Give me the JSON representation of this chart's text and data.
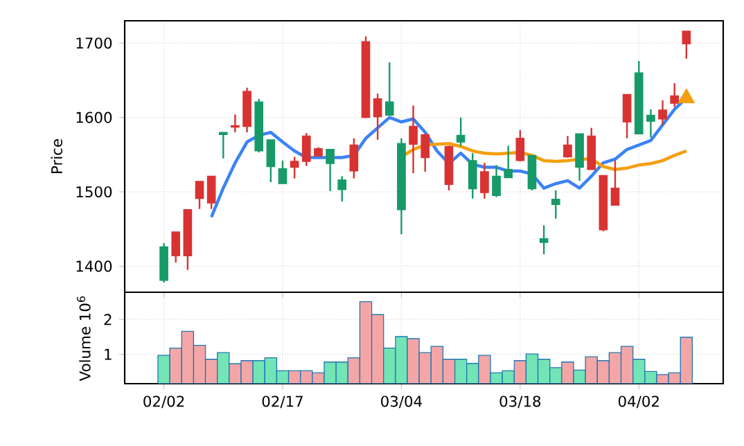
{
  "chart_data": [
    {
      "type": "candlestick",
      "ylabel": "Price",
      "categories": [
        null,
        null,
        null,
        null,
        null,
        null,
        null,
        null,
        null,
        null,
        null,
        null,
        null,
        null,
        null,
        null,
        null,
        null,
        null,
        null,
        null,
        null,
        null,
        null,
        null,
        null,
        null,
        null,
        null,
        null,
        null,
        null,
        null,
        null,
        null,
        null,
        null,
        null,
        null,
        null,
        null,
        null,
        null,
        null,
        null
      ],
      "ohlc": [
        [
          1381,
          1431,
          1378,
          1426
        ],
        [
          1446,
          1446,
          1405,
          1414
        ],
        [
          1476,
          1476,
          1395,
          1414
        ],
        [
          1514,
          1514,
          1477,
          1491
        ],
        [
          1521,
          1521,
          1477,
          1485
        ],
        [
          1577,
          1580,
          1545,
          1580
        ],
        [
          1589,
          1604,
          1580,
          1587
        ],
        [
          1635,
          1640,
          1580,
          1588
        ],
        [
          1555,
          1625,
          1553,
          1621
        ],
        [
          1534,
          1570,
          1513,
          1570
        ],
        [
          1511,
          1542,
          1511,
          1531
        ],
        [
          1541,
          1547,
          1518,
          1533
        ],
        [
          1575,
          1579,
          1535,
          1541
        ],
        [
          1558,
          1560,
          1548,
          1548
        ],
        [
          1538,
          1557,
          1501,
          1557
        ],
        [
          1503,
          1521,
          1487,
          1516
        ],
        [
          1563,
          1572,
          1518,
          1528
        ],
        [
          1702,
          1709,
          1599,
          1600
        ],
        [
          1625,
          1632,
          1570,
          1601
        ],
        [
          1603,
          1674,
          1603,
          1621
        ],
        [
          1476,
          1572,
          1443,
          1565
        ],
        [
          1588,
          1616,
          1525,
          1564
        ],
        [
          1577,
          1577,
          1527,
          1546
        ],
        null,
        [
          1561,
          1562,
          1502,
          1510
        ],
        [
          1567,
          1600,
          1562,
          1576
        ],
        [
          1504,
          1552,
          1491,
          1542
        ],
        [
          1527,
          1539,
          1491,
          1499
        ],
        [
          1495,
          1536,
          1493,
          1521
        ],
        [
          1519,
          1562,
          1519,
          1530
        ],
        [
          1572,
          1583,
          1541,
          1542
        ],
        [
          1504,
          1549,
          1502,
          1549
        ],
        [
          1432,
          1455,
          1416,
          1437
        ],
        [
          1483,
          1502,
          1464,
          1490
        ],
        [
          1563,
          1575,
          1546,
          1547
        ],
        [
          1533,
          1578,
          1515,
          1578
        ],
        [
          1575,
          1586,
          1530,
          1530
        ],
        [
          1522,
          1522,
          1447,
          1449
        ],
        [
          1505,
          1542,
          1482,
          1482
        ],
        [
          1631,
          1631,
          1572,
          1594
        ],
        [
          1578,
          1676,
          1578,
          1660
        ],
        [
          1595,
          1611,
          1573,
          1603
        ],
        [
          1610,
          1623,
          1590,
          1598
        ],
        [
          1629,
          1646,
          1614,
          1619
        ],
        [
          1716,
          1716,
          1679,
          1699
        ]
      ],
      "colors": [
        "#179a68",
        "#d93232",
        "#d93232",
        "#d93232",
        "#d93232",
        "#179a68",
        "#d93232",
        "#d93232",
        "#179a68",
        "#179a68",
        "#179a68",
        "#d93232",
        "#d93232",
        "#d93232",
        "#179a68",
        "#179a68",
        "#d93232",
        "#d93232",
        "#d93232",
        "#179a68",
        "#179a68",
        "#d93232",
        "#d93232",
        null,
        "#d93232",
        "#179a68",
        "#179a68",
        "#d93232",
        "#179a68",
        "#179a68",
        "#d93232",
        "#179a68",
        "#179a68",
        "#179a68",
        "#d93232",
        "#179a68",
        "#d93232",
        "#d93232",
        "#d93232",
        "#d93232",
        "#179a68",
        "#179a68",
        "#d93232",
        "#d93232",
        "#d93232"
      ],
      "series": [
        {
          "type": "line",
          "color": "#3b82f6",
          "values": [
            null,
            null,
            null,
            null,
            1466,
            1505,
            1539,
            1567,
            1576,
            1580,
            1567,
            1555,
            1546,
            1546,
            1546,
            1546,
            1549,
            1572,
            1586,
            1600,
            1594,
            1598,
            1580,
            1555,
            1538,
            1552,
            1537,
            1533,
            1533,
            1528,
            1528,
            1524,
            1505,
            1511,
            1515,
            1505,
            1521,
            1539,
            1544,
            1557,
            1563,
            1569,
            1590,
            1611,
            1626
          ]
        },
        {
          "type": "line",
          "color": "#f59e0b",
          "values": [
            null,
            null,
            null,
            null,
            null,
            null,
            null,
            null,
            null,
            null,
            null,
            null,
            null,
            null,
            null,
            null,
            null,
            null,
            null,
            null,
            1547,
            1557,
            1563,
            1564,
            1565,
            1561,
            1555,
            1552,
            1551,
            1552,
            1553,
            1549,
            1542,
            1541,
            1542,
            1544,
            1544,
            1534,
            1530,
            1532,
            1536,
            1538,
            1542,
            1549,
            1555
          ]
        },
        {
          "type": "scatter",
          "color": "#f59e0b",
          "marker": "triangle",
          "values": [
            null,
            null,
            null,
            null,
            null,
            null,
            null,
            null,
            null,
            null,
            null,
            null,
            null,
            null,
            null,
            null,
            null,
            null,
            null,
            null,
            null,
            null,
            null,
            null,
            null,
            null,
            null,
            null,
            null,
            null,
            null,
            null,
            null,
            null,
            null,
            null,
            null,
            null,
            null,
            null,
            null,
            null,
            null,
            null,
            1626
          ]
        }
      ],
      "ylim": [
        1365,
        1730
      ],
      "yticks": [
        1400,
        1500,
        1600,
        1700
      ],
      "grid": true,
      "tick_labels": "y"
    },
    {
      "type": "bar",
      "ylabel": "Volume  10$^{6}$",
      "categories": [
        "02/02",
        null,
        null,
        null,
        null,
        null,
        null,
        null,
        null,
        null,
        "02/17",
        null,
        null,
        null,
        null,
        null,
        null,
        null,
        null,
        null,
        "03/04",
        null,
        null,
        null,
        null,
        null,
        null,
        null,
        null,
        null,
        "03/18",
        null,
        null,
        null,
        null,
        null,
        null,
        null,
        null,
        null,
        "04/02",
        null,
        null,
        null,
        null
      ],
      "values": [
        0.97,
        1.18,
        1.66,
        1.26,
        0.86,
        1.05,
        0.73,
        0.82,
        0.82,
        0.9,
        0.53,
        0.53,
        0.53,
        0.47,
        0.78,
        0.78,
        0.9,
        2.51,
        2.14,
        1.18,
        1.51,
        1.45,
        1.05,
        1.23,
        0.86,
        0.86,
        0.74,
        0.97,
        0.47,
        0.53,
        0.82,
        1.01,
        0.86,
        0.62,
        0.78,
        0.55,
        0.93,
        0.82,
        1.05,
        1.23,
        0.86,
        0.51,
        0.42,
        0.47,
        1.49
      ],
      "colors": [
        "#72e4b6",
        "#f4a6a6",
        "#f4a6a6",
        "#f4a6a6",
        "#f4a6a6",
        "#72e4b6",
        "#f4a6a6",
        "#f4a6a6",
        "#72e4b6",
        "#72e4b6",
        "#72e4b6",
        "#f4a6a6",
        "#f4a6a6",
        "#f4a6a6",
        "#72e4b6",
        "#72e4b6",
        "#f4a6a6",
        "#f4a6a6",
        "#f4a6a6",
        "#72e4b6",
        "#72e4b6",
        "#f4a6a6",
        "#f4a6a6",
        "#f4a6a6",
        "#f4a6a6",
        "#72e4b6",
        "#72e4b6",
        "#f4a6a6",
        "#72e4b6",
        "#72e4b6",
        "#f4a6a6",
        "#72e4b6",
        "#72e4b6",
        "#72e4b6",
        "#f4a6a6",
        "#72e4b6",
        "#f4a6a6",
        "#f4a6a6",
        "#f4a6a6",
        "#f4a6a6",
        "#72e4b6",
        "#72e4b6",
        "#f4a6a6",
        "#f4a6a6",
        "#f4a6a6"
      ],
      "ylim": [
        0.16,
        2.78
      ],
      "yticks": [
        1,
        2
      ],
      "grid": true
    }
  ]
}
